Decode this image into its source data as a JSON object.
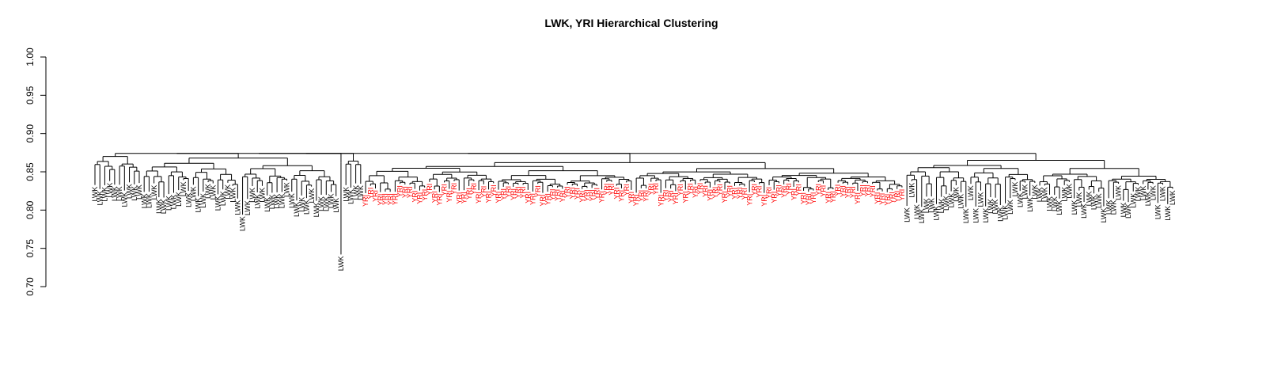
{
  "chart_data": {
    "type": "dendrogram",
    "title": "LWK, YRI Hierarchical Clustering",
    "xlabel": "",
    "ylabel": "",
    "ylim": [
      0.7,
      1.0
    ],
    "y_ticks": [
      "0.70",
      "0.75",
      "0.80",
      "0.85",
      "0.90",
      "0.95",
      "1.00"
    ],
    "grid": false,
    "legend": "none",
    "colors": {
      "LWK": "#000000",
      "YRI": "#ff0000",
      "branch": "#000000"
    },
    "root_height": 0.871,
    "groups": [
      {
        "label": "LWK",
        "color": "LWK",
        "leaf_count": 10,
        "merge_height": 0.874,
        "leaf_height_range": [
          0.823,
          0.838
        ],
        "outliers": []
      },
      {
        "label": "LWK",
        "color": "LWK",
        "leaf_count": 40,
        "merge_height": 0.872,
        "leaf_height_range": [
          0.812,
          0.84
        ],
        "outliers": [
          0.794
        ]
      },
      {
        "label": "LWK",
        "color": "LWK",
        "leaf_count": 1,
        "merge_height": 0.862,
        "leaf_height_range": [
          0.742,
          0.742
        ],
        "outliers": []
      },
      {
        "label": "LWK",
        "color": "LWK",
        "leaf_count": 4,
        "merge_height": 0.868,
        "leaf_height_range": [
          0.82,
          0.838
        ],
        "outliers": []
      },
      {
        "label": "YRI",
        "color": "YRI",
        "leaf_count": 110,
        "merge_height": 0.866,
        "leaf_height_range": [
          0.822,
          0.838
        ],
        "outliers": []
      },
      {
        "label": "LWK",
        "color": "LWK",
        "leaf_count": 55,
        "merge_height": 0.869,
        "leaf_height_range": [
          0.804,
          0.84
        ],
        "outliers": [
          0.832
        ]
      }
    ]
  }
}
